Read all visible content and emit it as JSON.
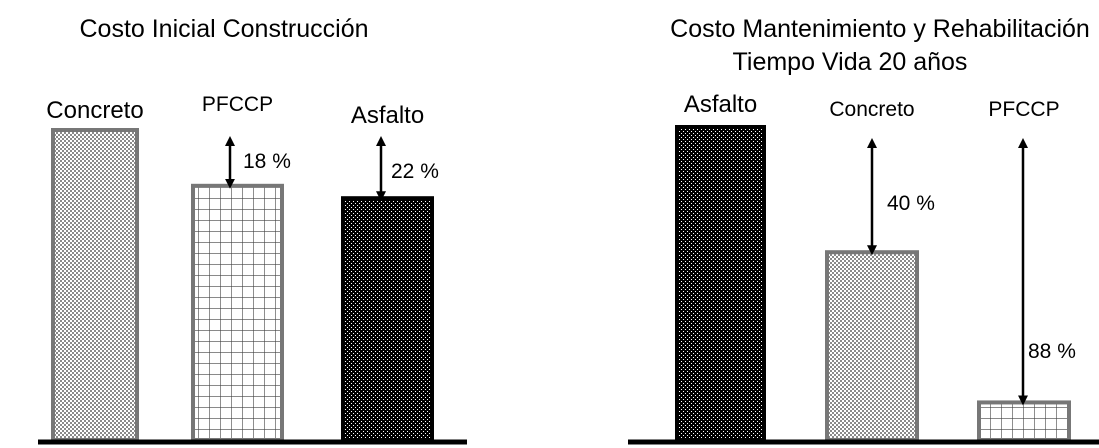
{
  "colors": {
    "concreto_fill": "#d6d6d6",
    "pfccp_fill": "#ffffff",
    "asfalto_fill": "#000000",
    "outline_gray": "#777777",
    "axis": "#000000"
  },
  "chart_data": [
    {
      "type": "bar",
      "title": "Costo Inicial Construcción",
      "subtitle": "",
      "categories": [
        "Concreto",
        "PFCCP",
        "Asfalto"
      ],
      "values": [
        100,
        82,
        78
      ],
      "patterns": [
        "dots-light",
        "grid",
        "dots-dark"
      ],
      "annotations": [
        {
          "from": "Concreto",
          "to": "PFCCP",
          "label": "18 %"
        },
        {
          "from": "Concreto",
          "to": "Asfalto",
          "label": "22 %"
        }
      ],
      "ylim": [
        0,
        100
      ],
      "grid": false
    },
    {
      "type": "bar",
      "title": "Costo Mantenimiento y Rehabilitación",
      "subtitle": "Tiempo Vida 20 años",
      "categories": [
        "Asfalto",
        "Concreto",
        "PFCCP"
      ],
      "values": [
        100,
        60,
        12
      ],
      "patterns": [
        "dots-dark",
        "dots-light",
        "grid"
      ],
      "annotations": [
        {
          "from": "Asfalto",
          "to": "Concreto",
          "label": "40 %"
        },
        {
          "from": "Asfalto",
          "to": "PFCCP",
          "label": "88 %"
        }
      ],
      "ylim": [
        0,
        100
      ],
      "grid": false
    }
  ]
}
